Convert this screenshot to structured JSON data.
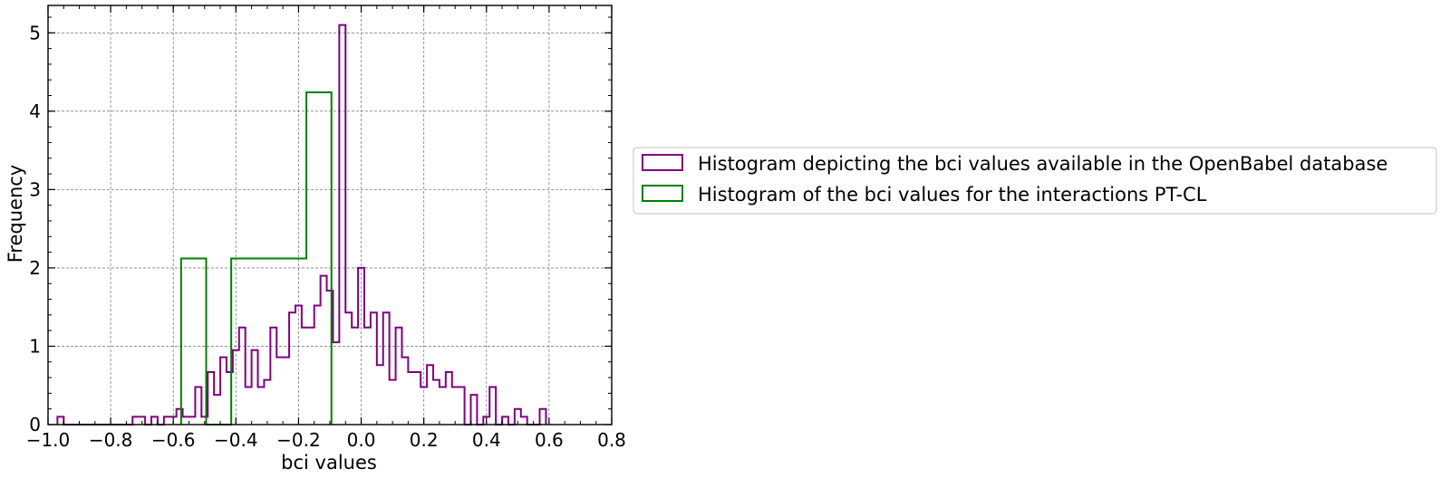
{
  "chart_data": {
    "type": "histogram",
    "title": "",
    "xlabel": "bci values",
    "ylabel": "Frequency",
    "xlim": [
      -1.0,
      0.8
    ],
    "ylim": [
      0,
      5.35
    ],
    "grid": true,
    "legend_position": "outside-right",
    "xticks": [
      -1.0,
      -0.8,
      -0.6,
      -0.4,
      -0.2,
      0.0,
      0.2,
      0.4,
      0.6,
      0.8
    ],
    "xtick_labels": [
      "−1.0",
      "−0.8",
      "−0.6",
      "−0.4",
      "−0.2",
      "0.0",
      "0.2",
      "0.4",
      "0.6",
      "0.8"
    ],
    "yticks": [
      0,
      1,
      2,
      3,
      4,
      5
    ],
    "ytick_labels": [
      "0",
      "1",
      "2",
      "3",
      "4",
      "5"
    ],
    "series": [
      {
        "name": "Histogram depicting the bci values available in the OpenBabel database",
        "color": "#800080",
        "bin_start": -0.97,
        "bin_width": 0.02,
        "values": [
          0.1,
          0,
          0,
          0,
          0,
          0,
          0,
          0,
          0,
          0,
          0,
          0,
          0.1,
          0.1,
          0,
          0.1,
          0,
          0.1,
          0.1,
          0.2,
          0.1,
          0.1,
          0.48,
          0.1,
          0.67,
          0.38,
          0.86,
          0.67,
          0.95,
          1.24,
          0.48,
          0.95,
          0.48,
          0.57,
          1.24,
          0.86,
          0.86,
          1.43,
          1.52,
          1.24,
          1.24,
          1.52,
          1.9,
          1.71,
          1.05,
          5.1,
          1.43,
          1.24,
          2.0,
          1.24,
          1.43,
          0.76,
          1.43,
          0.57,
          1.24,
          0.86,
          0.67,
          0.67,
          0.48,
          0.76,
          0.57,
          0.48,
          0.67,
          0.48,
          0.48,
          0,
          0.38,
          0,
          0.1,
          0.48,
          0,
          0.1,
          0,
          0.2,
          0.1,
          0,
          0,
          0.2
        ]
      },
      {
        "name": "Histogram of the bci values for the interactions PT-CL",
        "color": "#008000",
        "bin_edges": [
          -0.575,
          -0.495,
          -0.415,
          -0.335,
          -0.255,
          -0.175,
          -0.095
        ],
        "values": [
          2.12,
          0,
          2.12,
          2.12,
          2.12,
          4.24
        ]
      }
    ]
  }
}
